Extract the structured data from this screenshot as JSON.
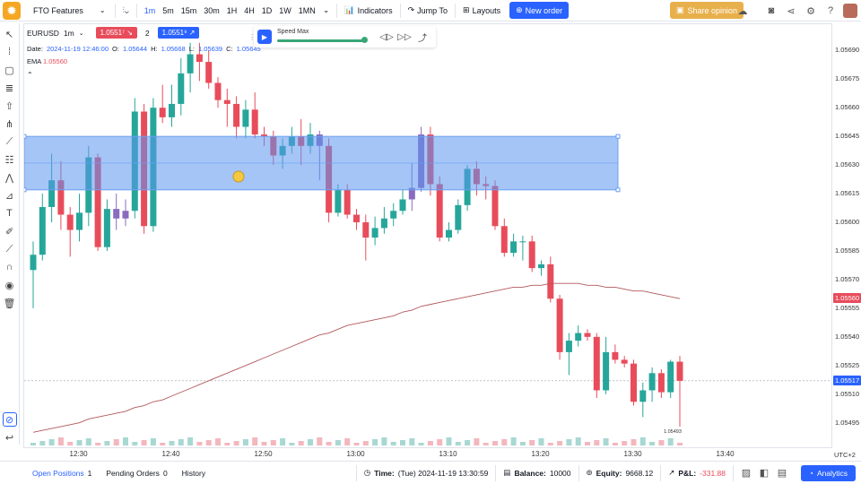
{
  "topbar": {
    "workspace": "FTO Features",
    "timeframes": [
      "1m",
      "5m",
      "15m",
      "30m",
      "1H",
      "4H",
      "1D",
      "1W",
      "1MN"
    ],
    "active_timeframe": "1m",
    "indicators_label": "Indicators",
    "jump_to_label": "Jump To",
    "layouts_label": "Layouts",
    "new_order_label": "New order",
    "share_label": "Share opinion"
  },
  "legend": {
    "symbol": "EURUSD",
    "interval": "1m",
    "sell_price": "1.0551⁷",
    "spread": "2",
    "buy_price": "1.0551⁹",
    "date_label": "Date:",
    "date_value": "2024-11-19 12:46:00",
    "o_label": "O:",
    "o_value": "1.05644",
    "h_label": "H:",
    "h_value": "1.05668",
    "l_label": "L:",
    "l_value": "1.05639",
    "c_label": "C:",
    "c_value": "1.05645",
    "ema_label": "EMA",
    "ema_value": "1.05560"
  },
  "replay": {
    "speed_label": "Speed Max",
    "speed_value": 1.0
  },
  "price_axis": {
    "ticks": [
      "1.05690",
      "1.05675",
      "1.05660",
      "1.05645",
      "1.05630",
      "1.05615",
      "1.05600",
      "1.05585",
      "1.05570",
      "1.05555",
      "1.05540",
      "1.05525",
      "1.05510",
      "1.05495"
    ],
    "ema_badge": "1.05560",
    "current_badge": "1.05517",
    "low_marker": "1.05493",
    "timezone": "UTC+2"
  },
  "time_axis": {
    "ticks": [
      "12:30",
      "12:40",
      "12:50",
      "13:00",
      "13:10",
      "13:20",
      "13:30",
      "13:40"
    ]
  },
  "colors": {
    "up": "#26a69a",
    "down": "#e84c5b",
    "highlight": "#8a6bbf",
    "zone": "#5b95f0",
    "ema": "#b2575c",
    "accent": "#2962ff"
  },
  "chart_data": {
    "type": "candlestick",
    "title": "",
    "xlabel": "",
    "ylabel": "",
    "ylim": [
      1.05485,
      1.057
    ],
    "series": [
      {
        "o": 1.05575,
        "h": 1.0559,
        "l": 1.05555,
        "c": 1.05583
      },
      {
        "o": 1.05583,
        "h": 1.05615,
        "l": 1.0558,
        "c": 1.05608
      },
      {
        "o": 1.05608,
        "h": 1.05636,
        "l": 1.056,
        "c": 1.05622
      },
      {
        "o": 1.05622,
        "h": 1.05632,
        "l": 1.05596,
        "c": 1.05604
      },
      {
        "o": 1.05604,
        "h": 1.05608,
        "l": 1.05582,
        "c": 1.05596
      },
      {
        "o": 1.05596,
        "h": 1.05615,
        "l": 1.0559,
        "c": 1.05605
      },
      {
        "o": 1.05605,
        "h": 1.0564,
        "l": 1.05598,
        "c": 1.05634
      },
      {
        "o": 1.05634,
        "h": 1.05636,
        "l": 1.05585,
        "c": 1.05587
      },
      {
        "o": 1.05587,
        "h": 1.05612,
        "l": 1.05585,
        "c": 1.05607
      },
      {
        "o": 1.05607,
        "h": 1.05615,
        "l": 1.05596,
        "c": 1.05602
      },
      {
        "o": 1.05602,
        "h": 1.05612,
        "l": 1.05598,
        "c": 1.05606
      },
      {
        "o": 1.05606,
        "h": 1.05665,
        "l": 1.05602,
        "c": 1.05658
      },
      {
        "o": 1.05658,
        "h": 1.05662,
        "l": 1.05594,
        "c": 1.05598
      },
      {
        "o": 1.05598,
        "h": 1.05665,
        "l": 1.05595,
        "c": 1.0566
      },
      {
        "o": 1.0566,
        "h": 1.05672,
        "l": 1.05652,
        "c": 1.05655
      },
      {
        "o": 1.05655,
        "h": 1.05672,
        "l": 1.0565,
        "c": 1.05662
      },
      {
        "o": 1.05662,
        "h": 1.05686,
        "l": 1.05656,
        "c": 1.05678
      },
      {
        "o": 1.05678,
        "h": 1.05694,
        "l": 1.05668,
        "c": 1.05688
      },
      {
        "o": 1.05688,
        "h": 1.05694,
        "l": 1.05674,
        "c": 1.05684
      },
      {
        "o": 1.05684,
        "h": 1.0569,
        "l": 1.0567,
        "c": 1.05673
      },
      {
        "o": 1.05673,
        "h": 1.05676,
        "l": 1.0566,
        "c": 1.05664
      },
      {
        "o": 1.05664,
        "h": 1.0567,
        "l": 1.0565,
        "c": 1.05662
      },
      {
        "o": 1.05662,
        "h": 1.05666,
        "l": 1.05644,
        "c": 1.0565
      },
      {
        "o": 1.0565,
        "h": 1.05664,
        "l": 1.05644,
        "c": 1.05659
      },
      {
        "o": 1.05659,
        "h": 1.05668,
        "l": 1.05644,
        "c": 1.05646
      },
      {
        "o": 1.05646,
        "h": 1.0565,
        "l": 1.0564,
        "c": 1.05645
      },
      {
        "o": 1.05645,
        "h": 1.05648,
        "l": 1.0563,
        "c": 1.05635
      },
      {
        "o": 1.05635,
        "h": 1.05644,
        "l": 1.05628,
        "c": 1.0564
      },
      {
        "o": 1.0564,
        "h": 1.0565,
        "l": 1.05636,
        "c": 1.05645
      },
      {
        "o": 1.05645,
        "h": 1.05654,
        "l": 1.0563,
        "c": 1.0564
      },
      {
        "o": 1.0564,
        "h": 1.05652,
        "l": 1.05636,
        "c": 1.05646
      },
      {
        "o": 1.05646,
        "h": 1.05648,
        "l": 1.05622,
        "c": 1.0564
      },
      {
        "o": 1.0564,
        "h": 1.05644,
        "l": 1.056,
        "c": 1.05605
      },
      {
        "o": 1.05605,
        "h": 1.0562,
        "l": 1.05603,
        "c": 1.05617
      },
      {
        "o": 1.05617,
        "h": 1.0562,
        "l": 1.05602,
        "c": 1.05604
      },
      {
        "o": 1.05604,
        "h": 1.05607,
        "l": 1.05596,
        "c": 1.056
      },
      {
        "o": 1.056,
        "h": 1.05604,
        "l": 1.0558,
        "c": 1.05592
      },
      {
        "o": 1.05592,
        "h": 1.05603,
        "l": 1.05588,
        "c": 1.05597
      },
      {
        "o": 1.05597,
        "h": 1.05608,
        "l": 1.05594,
        "c": 1.05602
      },
      {
        "o": 1.05602,
        "h": 1.0561,
        "l": 1.05598,
        "c": 1.05606
      },
      {
        "o": 1.05606,
        "h": 1.05617,
        "l": 1.05604,
        "c": 1.05612
      },
      {
        "o": 1.05612,
        "h": 1.05631,
        "l": 1.05606,
        "c": 1.05618
      },
      {
        "o": 1.05618,
        "h": 1.0565,
        "l": 1.05616,
        "c": 1.05646
      },
      {
        "o": 1.05646,
        "h": 1.0565,
        "l": 1.05614,
        "c": 1.0562
      },
      {
        "o": 1.0562,
        "h": 1.05624,
        "l": 1.0559,
        "c": 1.05592
      },
      {
        "o": 1.05592,
        "h": 1.056,
        "l": 1.0559,
        "c": 1.05596
      },
      {
        "o": 1.05596,
        "h": 1.05612,
        "l": 1.05594,
        "c": 1.05609
      },
      {
        "o": 1.05609,
        "h": 1.0563,
        "l": 1.05606,
        "c": 1.05628
      },
      {
        "o": 1.05628,
        "h": 1.05632,
        "l": 1.05614,
        "c": 1.0562
      },
      {
        "o": 1.0562,
        "h": 1.05624,
        "l": 1.05612,
        "c": 1.05619
      },
      {
        "o": 1.05619,
        "h": 1.05622,
        "l": 1.05596,
        "c": 1.05598
      },
      {
        "o": 1.05598,
        "h": 1.05602,
        "l": 1.05582,
        "c": 1.05584
      },
      {
        "o": 1.05584,
        "h": 1.05594,
        "l": 1.05582,
        "c": 1.0559
      },
      {
        "o": 1.0559,
        "h": 1.05593,
        "l": 1.0558,
        "c": 1.0559
      },
      {
        "o": 1.0559,
        "h": 1.05593,
        "l": 1.05574,
        "c": 1.05576
      },
      {
        "o": 1.05576,
        "h": 1.0558,
        "l": 1.05572,
        "c": 1.05578
      },
      {
        "o": 1.05578,
        "h": 1.05582,
        "l": 1.05558,
        "c": 1.0556
      },
      {
        "o": 1.0556,
        "h": 1.05562,
        "l": 1.05528,
        "c": 1.05532
      },
      {
        "o": 1.05532,
        "h": 1.05542,
        "l": 1.0552,
        "c": 1.05538
      },
      {
        "o": 1.05538,
        "h": 1.05546,
        "l": 1.05535,
        "c": 1.05542
      },
      {
        "o": 1.05542,
        "h": 1.05544,
        "l": 1.05538,
        "c": 1.0554
      },
      {
        "o": 1.0554,
        "h": 1.05542,
        "l": 1.05508,
        "c": 1.05512
      },
      {
        "o": 1.05512,
        "h": 1.0554,
        "l": 1.0551,
        "c": 1.05532
      },
      {
        "o": 1.05532,
        "h": 1.05536,
        "l": 1.05526,
        "c": 1.05528
      },
      {
        "o": 1.05528,
        "h": 1.0553,
        "l": 1.05524,
        "c": 1.05526
      },
      {
        "o": 1.05526,
        "h": 1.05528,
        "l": 1.05504,
        "c": 1.05506
      },
      {
        "o": 1.05506,
        "h": 1.05516,
        "l": 1.05498,
        "c": 1.05512
      },
      {
        "o": 1.05512,
        "h": 1.05524,
        "l": 1.05506,
        "c": 1.05521
      },
      {
        "o": 1.05521,
        "h": 1.05523,
        "l": 1.05508,
        "c": 1.05511
      },
      {
        "o": 1.05511,
        "h": 1.05528,
        "l": 1.05508,
        "c": 1.05527
      },
      {
        "o": 1.05527,
        "h": 1.0553,
        "l": 1.05493,
        "c": 1.05517
      }
    ],
    "ema": [
      1.0549,
      1.05491,
      1.05492,
      1.05493,
      1.05494,
      1.05495,
      1.05497,
      1.05498,
      1.05499,
      1.055,
      1.05501,
      1.05503,
      1.05504,
      1.05506,
      1.05507,
      1.05509,
      1.05511,
      1.05513,
      1.05515,
      1.05517,
      1.05519,
      1.05521,
      1.05523,
      1.05525,
      1.05527,
      1.05529,
      1.05531,
      1.05533,
      1.05535,
      1.05537,
      1.05539,
      1.05541,
      1.05542,
      1.05544,
      1.05546,
      1.05547,
      1.05548,
      1.05549,
      1.0555,
      1.05551,
      1.05553,
      1.05554,
      1.05556,
      1.05557,
      1.05558,
      1.05559,
      1.0556,
      1.05561,
      1.05562,
      1.05563,
      1.05564,
      1.05565,
      1.05566,
      1.05566,
      1.05567,
      1.05567,
      1.05568,
      1.05568,
      1.05568,
      1.05568,
      1.05567,
      1.05567,
      1.05566,
      1.05566,
      1.05565,
      1.05564,
      1.05564,
      1.05563,
      1.05562,
      1.05561,
      1.0556
    ],
    "highlighted_indices": [
      9,
      10,
      31,
      41,
      42
    ],
    "zone": {
      "top": 1.05645,
      "bottom": 1.05617
    },
    "x_first_time": "12:25",
    "time_tick_positions": [
      "12:30",
      "12:40",
      "12:50",
      "13:00",
      "13:10",
      "13:20",
      "13:30",
      "13:40"
    ]
  },
  "bottom": {
    "open_positions_label": "Open Positions",
    "open_positions_count": "1",
    "pending_orders_label": "Pending Orders",
    "pending_orders_count": "0",
    "history_label": "History",
    "time_label": "Time:",
    "time_value": "(Tue) 2024-11-19 13:30:59",
    "balance_label": "Balance:",
    "balance_value": "10000",
    "equity_label": "Equity:",
    "equity_value": "9668.12",
    "pnl_label": "P&L:",
    "pnl_value": "-331.88",
    "analytics_label": "Analytics"
  }
}
